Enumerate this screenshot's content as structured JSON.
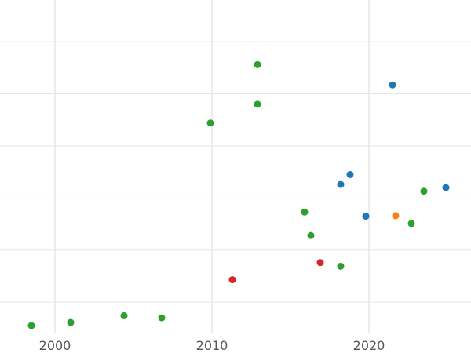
{
  "chart_data": {
    "type": "scatter",
    "title": "",
    "xlabel": "",
    "ylabel": "",
    "grid": true,
    "xlim": [
      1996.5,
      2026.5
    ],
    "ylim": [
      0.4,
      6.8
    ],
    "x_ticks": [
      2000,
      2010,
      2020
    ],
    "x_tick_labels": [
      "2000",
      "2010",
      "2020"
    ],
    "y_gridlines": [
      1,
      2,
      3,
      4,
      5,
      6
    ],
    "y_tick_labels_visible": false,
    "colors": {
      "blue": "#1f77b4",
      "orange": "#ff7f0e",
      "green": "#2ca02c",
      "red": "#d62728",
      "grid": "#e5e5e5",
      "tick_text": "#555555"
    },
    "points": [
      {
        "x": 1998.5,
        "y": 0.55,
        "color": "green"
      },
      {
        "x": 2001.0,
        "y": 0.61,
        "color": "green"
      },
      {
        "x": 2004.4,
        "y": 0.74,
        "color": "green"
      },
      {
        "x": 2006.8,
        "y": 0.7,
        "color": "green"
      },
      {
        "x": 2009.9,
        "y": 4.44,
        "color": "green"
      },
      {
        "x": 2011.3,
        "y": 1.43,
        "color": "red"
      },
      {
        "x": 2012.9,
        "y": 4.8,
        "color": "green"
      },
      {
        "x": 2012.9,
        "y": 5.56,
        "color": "green"
      },
      {
        "x": 2015.9,
        "y": 2.73,
        "color": "green"
      },
      {
        "x": 2016.3,
        "y": 2.28,
        "color": "green"
      },
      {
        "x": 2016.9,
        "y": 1.76,
        "color": "red"
      },
      {
        "x": 2018.2,
        "y": 3.26,
        "color": "blue"
      },
      {
        "x": 2018.2,
        "y": 1.69,
        "color": "green"
      },
      {
        "x": 2018.8,
        "y": 3.45,
        "color": "blue"
      },
      {
        "x": 2019.8,
        "y": 2.65,
        "color": "blue"
      },
      {
        "x": 2021.5,
        "y": 5.17,
        "color": "blue"
      },
      {
        "x": 2021.7,
        "y": 2.66,
        "color": "orange"
      },
      {
        "x": 2022.7,
        "y": 2.51,
        "color": "green"
      },
      {
        "x": 2023.5,
        "y": 3.13,
        "color": "green"
      },
      {
        "x": 2024.9,
        "y": 3.2,
        "color": "blue"
      }
    ]
  }
}
